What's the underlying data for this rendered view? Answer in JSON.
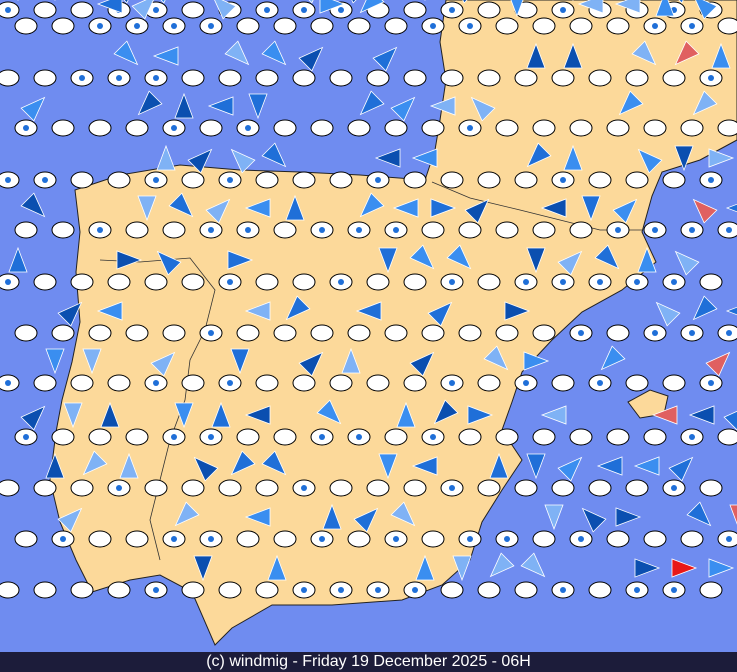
{
  "footer": {
    "text": "(c) windmig - Friday 19 December 2025 - 06H"
  }
}
